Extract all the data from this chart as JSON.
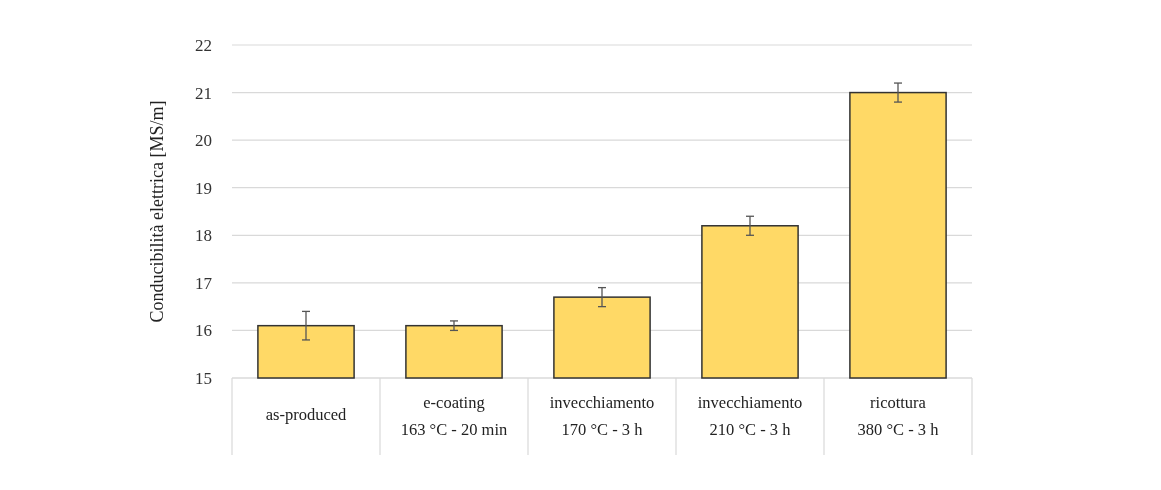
{
  "chart_data": {
    "type": "bar",
    "ylabel": "Conducibilità elettrica [MS/m]",
    "categories": [
      "as-produced",
      "e-coating\n163 °C - 20 min",
      "invecchiamento\n170 °C - 3 h",
      "invecchiamento\n210 °C - 3 h",
      "ricottura\n380 °C - 3 h"
    ],
    "values": [
      16.1,
      16.1,
      16.7,
      18.2,
      21.0
    ],
    "errors": [
      0.3,
      0.1,
      0.2,
      0.2,
      0.2
    ],
    "color": "#ffd966",
    "ylim": [
      15,
      22
    ],
    "yticks": [
      15,
      16,
      17,
      18,
      19,
      20,
      21,
      22
    ],
    "grid": "y"
  }
}
